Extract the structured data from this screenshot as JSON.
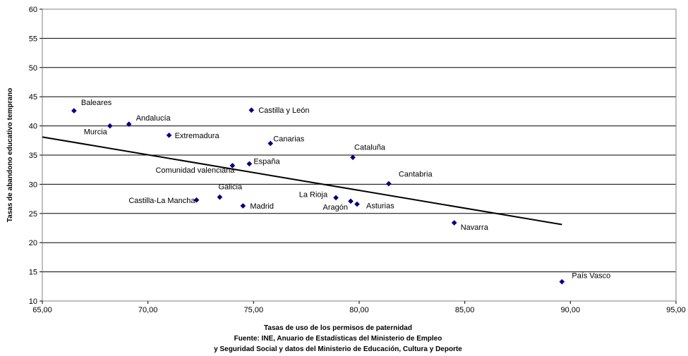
{
  "chart_data": {
    "type": "scatter",
    "xlabel": "Tasas de uso de los permisos de paternidad",
    "ylabel": "Tasas de abandono educativo temprano",
    "source_lines": [
      "Fuente:  INE, Anuario de Estadísticas del Ministerio de Empleo",
      "y Seguridad Social y datos del Ministerio de Educación, Cultura y Deporte"
    ],
    "xlim": [
      65,
      95
    ],
    "ylim": [
      10,
      60
    ],
    "x_ticks": [
      "65,00",
      "70,00",
      "75,00",
      "80,00",
      "85,00",
      "90,00",
      "95,00"
    ],
    "y_ticks": [
      "10",
      "15",
      "20",
      "25",
      "30",
      "35",
      "40",
      "45",
      "50",
      "55",
      "60"
    ],
    "grid": "horizontal",
    "marker_color": "#000080",
    "trendline_color": "#000000",
    "points": [
      {
        "label": "Baleares",
        "x": 66.5,
        "y": 42.6
      },
      {
        "label": "Murcia",
        "x": 68.2,
        "y": 40.0
      },
      {
        "label": "Andalucía",
        "x": 69.1,
        "y": 40.3
      },
      {
        "label": "Extremadura",
        "x": 71.0,
        "y": 38.4
      },
      {
        "label": "Castilla y León",
        "x": 74.9,
        "y": 42.7
      },
      {
        "label": "Canarias",
        "x": 75.8,
        "y": 37.0
      },
      {
        "label": "Comunidad valenciana",
        "x": 74.0,
        "y": 33.2
      },
      {
        "label": "España",
        "x": 74.8,
        "y": 33.5
      },
      {
        "label": "Cataluña",
        "x": 79.7,
        "y": 34.6
      },
      {
        "label": "Cantabria",
        "x": 81.4,
        "y": 30.1
      },
      {
        "label": "Galicia",
        "x": 73.4,
        "y": 27.8
      },
      {
        "label": "Castilla-La Mancha",
        "x": 72.3,
        "y": 27.3
      },
      {
        "label": "Madrid",
        "x": 74.5,
        "y": 26.3
      },
      {
        "label": "La Rioja",
        "x": 78.9,
        "y": 27.7
      },
      {
        "label": "Aragón",
        "x": 79.6,
        "y": 27.1
      },
      {
        "label": "Asturias",
        "x": 79.9,
        "y": 26.6
      },
      {
        "label": "Navarra",
        "x": 84.5,
        "y": 23.4
      },
      {
        "label": "País Vasco",
        "x": 89.6,
        "y": 13.3
      }
    ],
    "trendline": [
      {
        "x": 65.0,
        "y": 38.1
      },
      {
        "x": 89.6,
        "y": 23.1
      }
    ]
  }
}
